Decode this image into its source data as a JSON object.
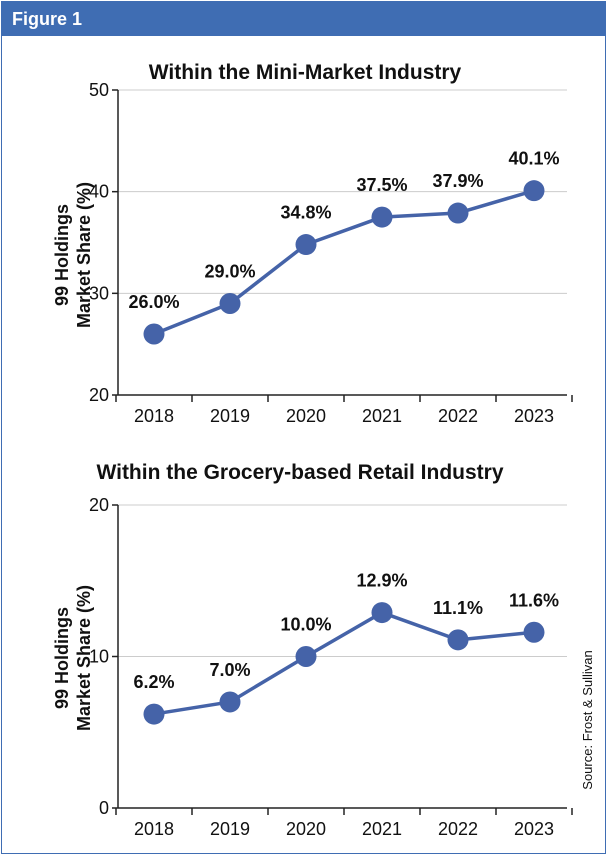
{
  "figure_label": "Figure 1",
  "source": "Source: Frost & Sullivan",
  "colors": {
    "accent": "#3f6db3",
    "line": "#4563a8",
    "marker": "#4563a8",
    "grid": "#cccccc"
  },
  "chart_data": [
    {
      "type": "line",
      "title": "Within the Mini-Market Industry",
      "ylabel_line1": "99 Holdings",
      "ylabel_line2": "Market Share (%)",
      "ylim": [
        20,
        50
      ],
      "yticks": [
        "20",
        "30",
        "40",
        "50"
      ],
      "categories": [
        "2018",
        "2019",
        "2020",
        "2021",
        "2022",
        "2023"
      ],
      "values": [
        26.0,
        29.0,
        34.8,
        37.5,
        37.9,
        40.1
      ],
      "data_labels": [
        "26.0%",
        "29.0%",
        "34.8%",
        "37.5%",
        "37.9%",
        "40.1%"
      ],
      "grid": true
    },
    {
      "type": "line",
      "title": "Within the Grocery-based Retail Industry",
      "ylabel_line1": "99 Holdings",
      "ylabel_line2": "Market Share (%)",
      "ylim": [
        0,
        20
      ],
      "yticks": [
        "0",
        "10",
        "20"
      ],
      "categories": [
        "2018",
        "2019",
        "2020",
        "2021",
        "2022",
        "2023"
      ],
      "values": [
        6.2,
        7.0,
        10.0,
        12.9,
        11.1,
        11.6
      ],
      "data_labels": [
        "6.2%",
        "7.0%",
        "10.0%",
        "12.9%",
        "11.1%",
        "11.6%"
      ],
      "grid": true
    }
  ]
}
